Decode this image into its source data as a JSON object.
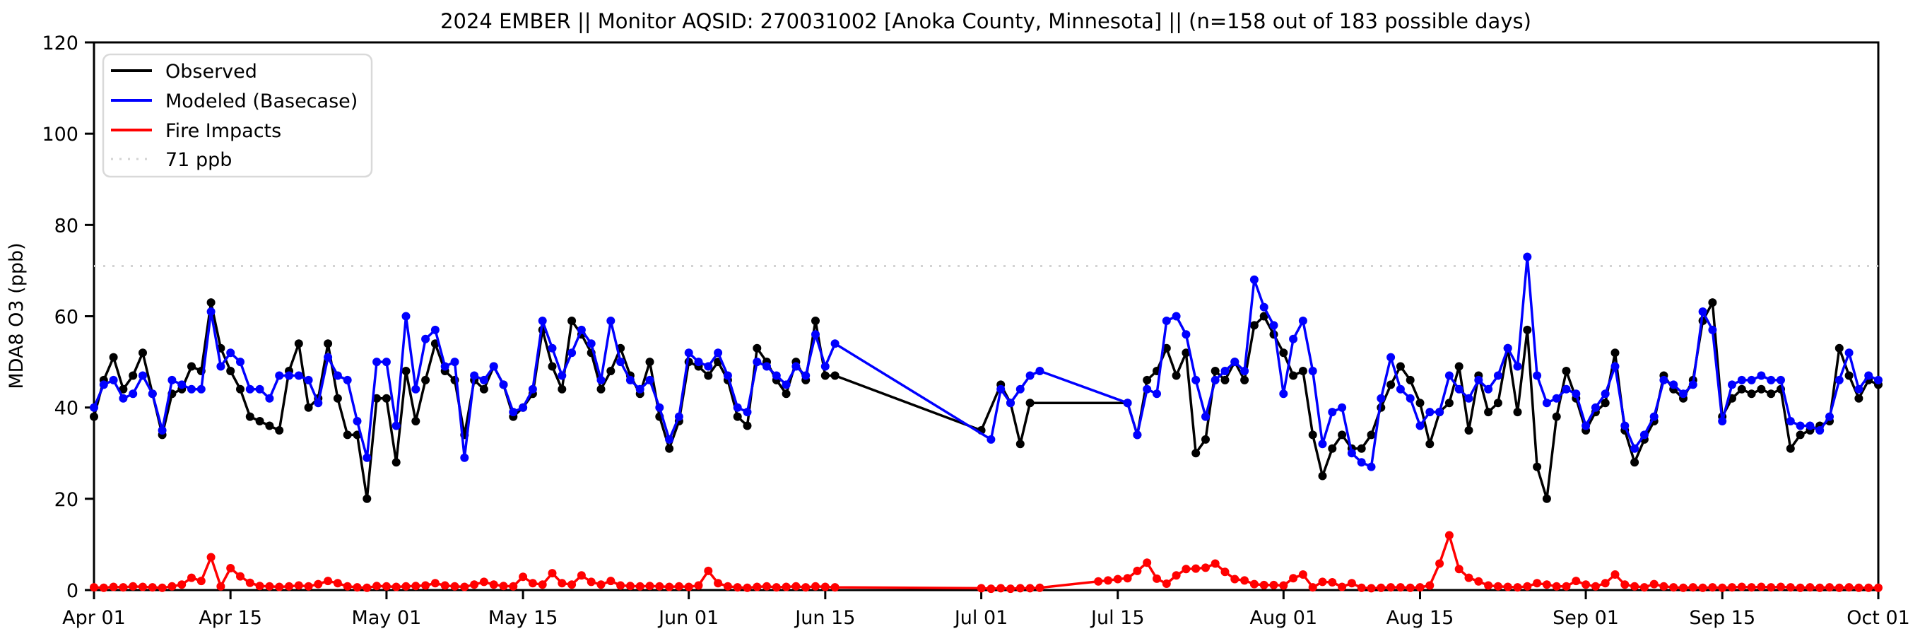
{
  "chart_data": {
    "type": "line",
    "title": "2024 EMBER || Monitor AQSID: 270031002 [Anoka County, Minnesota] || (n=158 out of 183 possible days)",
    "xlabel": "",
    "ylabel": "MDA8 O3 (ppb)",
    "ylim": [
      0,
      120
    ],
    "y_ticks": [
      0,
      20,
      40,
      60,
      80,
      100,
      120
    ],
    "x_start_date": "Apr 01",
    "x_end_date": "Oct 01",
    "days_total": 184,
    "x_ticks": [
      {
        "label": "Apr 01",
        "day": 0
      },
      {
        "label": "Apr 15",
        "day": 14
      },
      {
        "label": "May 01",
        "day": 30
      },
      {
        "label": "May 15",
        "day": 44
      },
      {
        "label": "Jun 01",
        "day": 61
      },
      {
        "label": "Jun 15",
        "day": 75
      },
      {
        "label": "Jul 01",
        "day": 91
      },
      {
        "label": "Jul 15",
        "day": 105
      },
      {
        "label": "Aug 01",
        "day": 122
      },
      {
        "label": "Aug 15",
        "day": 136
      },
      {
        "label": "Sep 01",
        "day": 153
      },
      {
        "label": "Sep 15",
        "day": 167
      },
      {
        "label": "Oct 01",
        "day": 183
      }
    ],
    "threshold": {
      "label": "71 ppb",
      "value": 71,
      "color": "#d3d3d3"
    },
    "legend_position": "upper-left",
    "grid": false,
    "series": [
      {
        "name": "Observed",
        "color": "#000000",
        "values": [
          38,
          46,
          51,
          44,
          47,
          52,
          43,
          34,
          43,
          44,
          49,
          48,
          63,
          53,
          48,
          44,
          38,
          37,
          36,
          35,
          48,
          54,
          40,
          42,
          54,
          42,
          34,
          34,
          20,
          42,
          42,
          28,
          48,
          37,
          46,
          54,
          48,
          46,
          34,
          46,
          44,
          49,
          45,
          38,
          40,
          43,
          57,
          49,
          44,
          59,
          56,
          52,
          44,
          48,
          53,
          47,
          43,
          50,
          38,
          31,
          37,
          50,
          49,
          47,
          50,
          46,
          38,
          36,
          53,
          50,
          46,
          43,
          50,
          46,
          59,
          47,
          47,
          null,
          null,
          null,
          null,
          null,
          null,
          null,
          null,
          null,
          null,
          null,
          null,
          null,
          null,
          35,
          null,
          45,
          41,
          32,
          41,
          null,
          null,
          null,
          null,
          null,
          null,
          null,
          null,
          null,
          41,
          34,
          46,
          48,
          53,
          47,
          52,
          30,
          33,
          48,
          46,
          50,
          46,
          58,
          60,
          56,
          52,
          47,
          48,
          34,
          25,
          31,
          34,
          31,
          31,
          34,
          40,
          45,
          49,
          46,
          41,
          32,
          39,
          41,
          49,
          35,
          47,
          39,
          41,
          53,
          39,
          57,
          27,
          20,
          38,
          48,
          42,
          35,
          39,
          41,
          52,
          35,
          28,
          33,
          37,
          47,
          44,
          42,
          46,
          59,
          63,
          38,
          42,
          44,
          43,
          44,
          43,
          44,
          31,
          34,
          35,
          36,
          37,
          53,
          47,
          42,
          46,
          45
        ]
      },
      {
        "name": "Modeled (Basecase)",
        "color": "#0000ff",
        "values": [
          40,
          45,
          46,
          42,
          43,
          47,
          43,
          35,
          46,
          45,
          44,
          44,
          61,
          49,
          52,
          50,
          44,
          44,
          42,
          47,
          47,
          47,
          46,
          41,
          51,
          47,
          46,
          37,
          29,
          50,
          50,
          36,
          60,
          44,
          55,
          57,
          49,
          50,
          29,
          47,
          46,
          49,
          45,
          39,
          40,
          44,
          59,
          53,
          47,
          52,
          57,
          54,
          46,
          59,
          50,
          46,
          44,
          46,
          40,
          33,
          38,
          52,
          50,
          49,
          52,
          47,
          40,
          39,
          50,
          49,
          47,
          45,
          49,
          47,
          56,
          49,
          54,
          null,
          null,
          null,
          null,
          null,
          null,
          null,
          null,
          null,
          null,
          null,
          null,
          null,
          null,
          null,
          33,
          44,
          41,
          44,
          47,
          48,
          null,
          null,
          null,
          null,
          null,
          null,
          null,
          null,
          41,
          34,
          44,
          43,
          59,
          60,
          56,
          46,
          38,
          46,
          48,
          50,
          48,
          68,
          62,
          58,
          43,
          55,
          59,
          48,
          32,
          39,
          40,
          30,
          28,
          27,
          42,
          51,
          44,
          42,
          36,
          39,
          39,
          47,
          44,
          42,
          46,
          44,
          47,
          53,
          49,
          73,
          47,
          41,
          42,
          44,
          43,
          36,
          40,
          43,
          49,
          36,
          31,
          34,
          38,
          46,
          45,
          43,
          45,
          61,
          57,
          37,
          45,
          46,
          46,
          47,
          46,
          46,
          37,
          36,
          36,
          35,
          38,
          46,
          52,
          44,
          47,
          46
        ]
      },
      {
        "name": "Fire Impacts",
        "color": "#ff0000",
        "values": [
          0.6,
          0.5,
          0.7,
          0.6,
          0.8,
          0.7,
          0.6,
          0.5,
          0.8,
          1.2,
          2.7,
          2.0,
          7.2,
          0.8,
          4.8,
          3.0,
          1.6,
          0.9,
          0.8,
          0.7,
          0.8,
          1.0,
          0.8,
          1.3,
          2.0,
          1.5,
          0.8,
          0.6,
          0.5,
          0.9,
          0.8,
          0.7,
          0.8,
          0.9,
          1.0,
          1.5,
          1.0,
          0.8,
          0.7,
          1.2,
          1.8,
          1.2,
          0.9,
          0.8,
          2.9,
          1.5,
          1.2,
          3.7,
          1.5,
          1.2,
          3.2,
          1.8,
          1.2,
          2.0,
          1.0,
          0.9,
          0.8,
          0.9,
          0.8,
          0.7,
          0.8,
          0.7,
          1.0,
          4.2,
          1.5,
          0.8,
          0.6,
          0.5,
          0.7,
          0.8,
          0.6,
          0.7,
          0.8,
          0.6,
          0.8,
          0.7,
          0.6,
          null,
          null,
          null,
          null,
          null,
          null,
          null,
          null,
          null,
          null,
          null,
          null,
          null,
          null,
          0.4,
          0.3,
          0.4,
          0.3,
          0.4,
          0.4,
          0.5,
          null,
          null,
          null,
          null,
          null,
          1.9,
          2.1,
          2.4,
          2.6,
          4.2,
          6.0,
          2.5,
          1.4,
          3.2,
          4.6,
          4.7,
          4.9,
          5.8,
          4.0,
          2.4,
          2.1,
          1.3,
          1.1,
          1.1,
          1.0,
          2.6,
          3.4,
          0.6,
          1.8,
          1.7,
          0.7,
          1.5,
          0.5,
          0.4,
          0.5,
          0.6,
          0.6,
          0.5,
          0.6,
          1.0,
          5.8,
          12.0,
          4.6,
          2.7,
          1.9,
          1.0,
          0.8,
          0.7,
          0.6,
          0.8,
          1.5,
          1.2,
          0.8,
          0.8,
          2.0,
          1.2,
          0.8,
          1.5,
          3.4,
          1.2,
          0.8,
          0.6,
          1.3,
          0.8,
          0.6,
          0.5,
          0.6,
          0.5,
          0.6,
          0.5,
          0.6,
          0.7,
          0.6,
          0.7,
          0.6,
          0.7,
          0.6,
          0.5,
          0.6,
          0.5,
          0.6,
          0.5,
          0.6,
          0.5,
          0.5,
          0.5
        ]
      }
    ]
  }
}
